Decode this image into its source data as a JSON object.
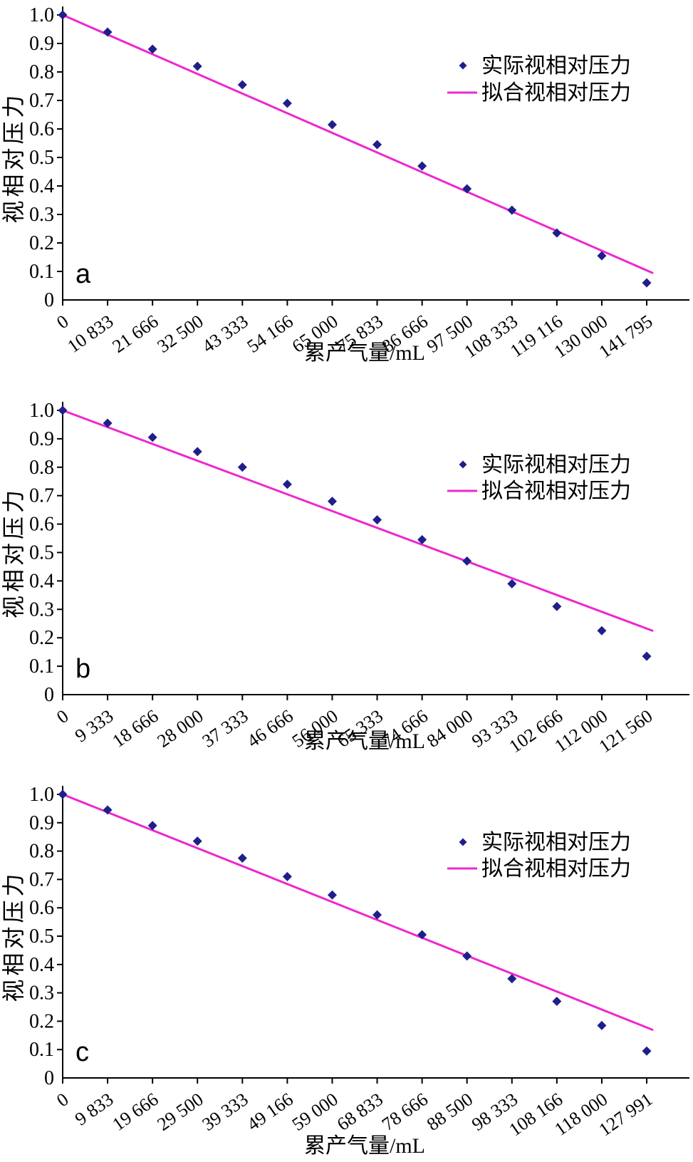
{
  "figure": {
    "background": "#ffffff",
    "ylabel": "视相对压力",
    "xlabel": "累产气量/mL",
    "yticks": [
      "1.0",
      "0.9",
      "0.8",
      "0.7",
      "0.6",
      "0.5",
      "0.4",
      "0.3",
      "0.2",
      "0.1",
      "0"
    ],
    "ylim": [
      0,
      1.0
    ],
    "legend": {
      "actual_label": "实际视相对压力",
      "fitted_label": "拟合视相对压力"
    },
    "colors": {
      "actual_marker": "#1F1F8C",
      "fitted_line": "#EE28CE",
      "axis": "#000000",
      "text": "#000000"
    }
  },
  "chart_data": [
    {
      "panel": "a",
      "type": "scatter",
      "title": "",
      "xlabel": "累产气量/mL",
      "ylabel": "视相对压力",
      "ylim": [
        0,
        1.0
      ],
      "grid": false,
      "legend_position": "upper-right-inside",
      "x_tick_labels": [
        "0",
        "10 833",
        "21 666",
        "32 500",
        "43 333",
        "54 166",
        "65 000",
        "75 833",
        "86 666",
        "97 500",
        "108 333",
        "119 116",
        "130 000",
        "141 795"
      ],
      "x": [
        0,
        10833,
        21666,
        32500,
        43333,
        54166,
        65000,
        75833,
        86666,
        97500,
        108333,
        119116,
        130000,
        141795
      ],
      "series": [
        {
          "name": "实际视相对压力",
          "type": "scatter",
          "marker": "diamond",
          "color": "#1F1F8C",
          "values": [
            1.0,
            0.94,
            0.88,
            0.82,
            0.755,
            0.69,
            0.615,
            0.545,
            0.47,
            0.39,
            0.315,
            0.235,
            0.155,
            0.06
          ]
        },
        {
          "name": "拟合视相对压力",
          "type": "line",
          "color": "#EE28CE",
          "endpoints": [
            [
              0,
              1.0
            ],
            [
              141795,
              0.095
            ]
          ]
        }
      ]
    },
    {
      "panel": "b",
      "type": "scatter",
      "title": "",
      "xlabel": "累产气量/mL",
      "ylabel": "视相对压力",
      "ylim": [
        0,
        1.0
      ],
      "grid": false,
      "legend_position": "upper-right-inside",
      "x_tick_labels": [
        "0",
        "9 333",
        "18 666",
        "28 000",
        "37 333",
        "46 666",
        "56 000",
        "65 333",
        "74 666",
        "84 000",
        "93 333",
        "102 666",
        "112 000",
        "121 560"
      ],
      "x": [
        0,
        9333,
        18666,
        28000,
        37333,
        46666,
        56000,
        65333,
        74666,
        84000,
        93333,
        102666,
        112000,
        121560
      ],
      "series": [
        {
          "name": "实际视相对压力",
          "type": "scatter",
          "marker": "diamond",
          "color": "#1F1F8C",
          "values": [
            1.0,
            0.955,
            0.905,
            0.855,
            0.8,
            0.74,
            0.68,
            0.615,
            0.545,
            0.47,
            0.39,
            0.31,
            0.225,
            0.135
          ]
        },
        {
          "name": "拟合视相对压力",
          "type": "line",
          "color": "#EE28CE",
          "endpoints": [
            [
              0,
              1.0
            ],
            [
              121560,
              0.225
            ]
          ]
        }
      ]
    },
    {
      "panel": "c",
      "type": "scatter",
      "title": "",
      "xlabel": "累产气量/mL",
      "ylabel": "视相对压力",
      "ylim": [
        0,
        1.0
      ],
      "grid": false,
      "legend_position": "upper-right-inside",
      "x_tick_labels": [
        "0",
        "9 833",
        "19 666",
        "29 500",
        "39 333",
        "49 166",
        "59 000",
        "68 833",
        "78 666",
        "88 500",
        "98 333",
        "108 166",
        "118 000",
        "127 991"
      ],
      "x": [
        0,
        9833,
        19666,
        29500,
        39333,
        49166,
        59000,
        68833,
        78666,
        88500,
        98333,
        108166,
        118000,
        127991
      ],
      "series": [
        {
          "name": "实际视相对压力",
          "type": "scatter",
          "marker": "diamond",
          "color": "#1F1F8C",
          "values": [
            1.0,
            0.945,
            0.89,
            0.835,
            0.775,
            0.71,
            0.645,
            0.575,
            0.505,
            0.43,
            0.35,
            0.27,
            0.185,
            0.095
          ]
        },
        {
          "name": "拟合视相对压力",
          "type": "line",
          "color": "#EE28CE",
          "endpoints": [
            [
              0,
              1.0
            ],
            [
              127991,
              0.17
            ]
          ]
        }
      ]
    }
  ]
}
